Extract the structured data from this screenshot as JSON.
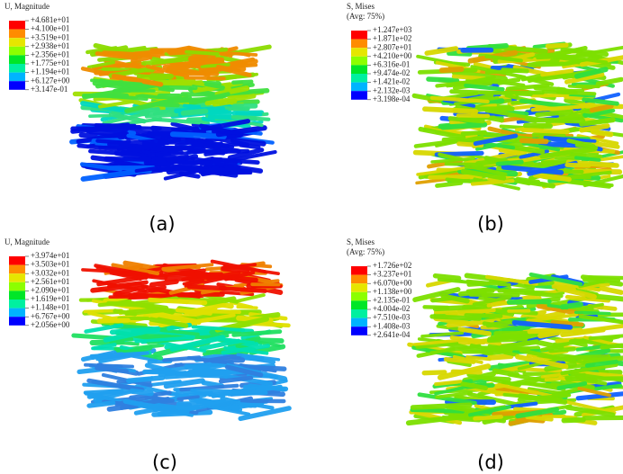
{
  "panels": [
    {
      "legend": {
        "title": [
          "U, Magnitude"
        ],
        "labels": [
          "+4.681e+01",
          "+4.100e+01",
          "+3.519e+01",
          "+2.938e+01",
          "+2.356e+01",
          "+1.775e+01",
          "+1.194e+01",
          "+6.127e+00",
          "+3.147e-01"
        ]
      },
      "caption": "(a)"
    },
    {
      "legend": {
        "title": [
          "S, Mises",
          "(Avg: 75%)"
        ],
        "labels": [
          "+1.247e+03",
          "+1.871e+02",
          "+2.807e+01",
          "+4.210e+00",
          "+6.316e-01",
          "+9.474e-02",
          "+1.421e-02",
          "+2.132e-03",
          "+3.198e-04"
        ]
      },
      "caption": "(b)"
    },
    {
      "legend": {
        "title": [
          "U, Magnitude"
        ],
        "labels": [
          "+3.974e+01",
          "+3.503e+01",
          "+3.032e+01",
          "+2.561e+01",
          "+2.090e+01",
          "+1.619e+01",
          "+1.148e+01",
          "+6.767e+00",
          "+2.056e+00"
        ]
      },
      "caption": "(c)"
    },
    {
      "legend": {
        "title": [
          "S, Mises",
          "(Avg: 75%)"
        ],
        "labels": [
          "+1.726e+02",
          "+3.237e+01",
          "+6.070e+00",
          "+1.138e+00",
          "+2.135e-01",
          "+4.004e-02",
          "+7.510e-03",
          "+1.408e-03",
          "+2.641e-04"
        ]
      },
      "caption": "(d)"
    }
  ]
}
